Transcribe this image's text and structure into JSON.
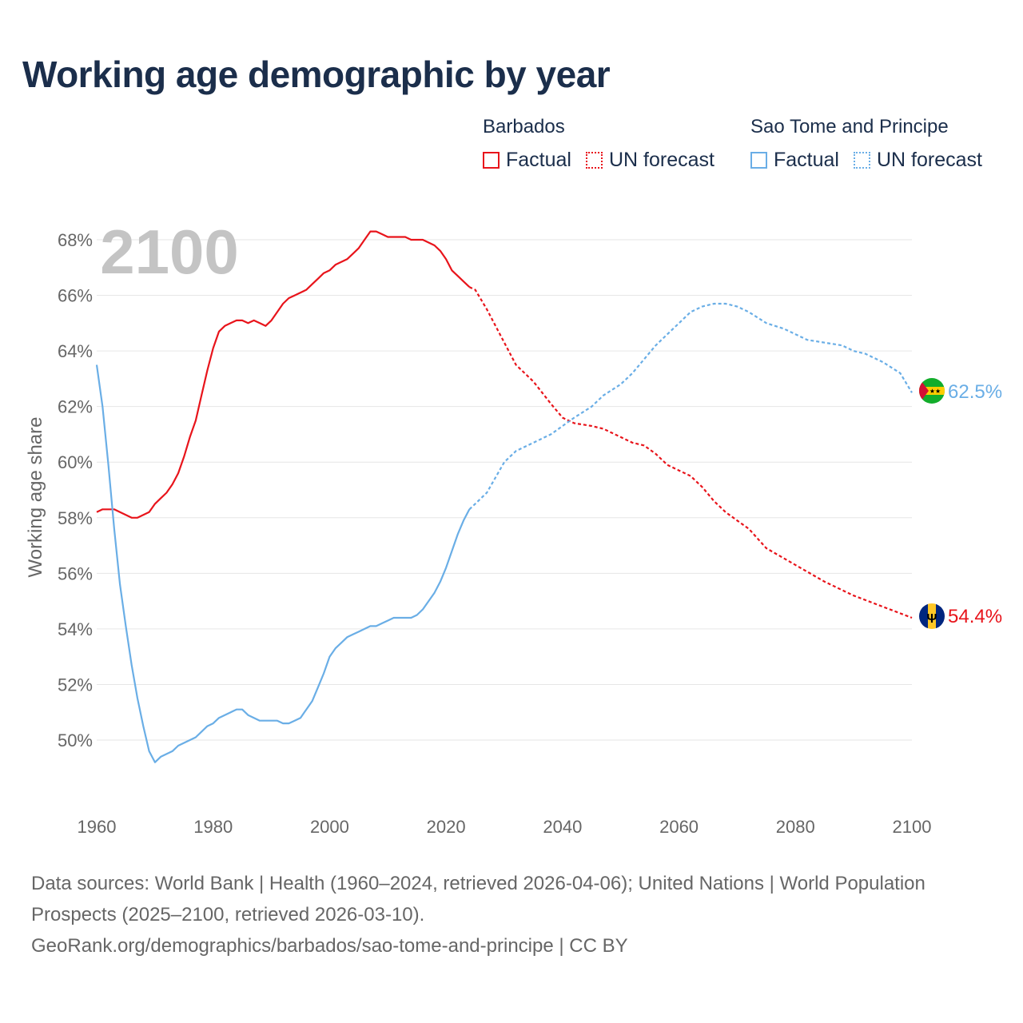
{
  "title": "Working age demographic by year",
  "year_watermark": "2100",
  "legend": {
    "groups": [
      {
        "name": "Barbados",
        "color": "#e8141b",
        "factual_label": "Factual",
        "forecast_label": "UN forecast"
      },
      {
        "name": "Sao Tome and Principe",
        "color": "#6aaee6",
        "factual_label": "Factual",
        "forecast_label": "UN forecast"
      }
    ]
  },
  "footer": {
    "sources": "Data sources: World Bank | Health (1960–2024, retrieved 2026-04-06); United Nations | World Population Prospects (2025–2100, retrieved 2026-03-10).",
    "link": "GeoRank.org/demographics/barbados/sao-tome-and-principe | CC BY"
  },
  "chart_data": {
    "type": "line",
    "title": "Working age demographic by year",
    "xlabel": "",
    "ylabel": "Working age share",
    "xlim": [
      1960,
      2100
    ],
    "ylim": [
      47.5,
      68.5
    ],
    "xticks": [
      1960,
      1980,
      2000,
      2020,
      2040,
      2060,
      2080,
      2100
    ],
    "xtick_labels": [
      "1960",
      "1980",
      "2000",
      "2020",
      "2040",
      "2060",
      "2080",
      "2100"
    ],
    "yticks": [
      50,
      52,
      54,
      56,
      58,
      60,
      62,
      64,
      66,
      68
    ],
    "ytick_labels": [
      "50%",
      "52%",
      "54%",
      "56%",
      "58%",
      "60%",
      "62%",
      "64%",
      "66%",
      "68%"
    ],
    "grid": true,
    "forecast_start": 2024,
    "series": [
      {
        "name": "Barbados",
        "color": "#e8141b",
        "end_label": "54.4%",
        "x": [
          1960,
          1961,
          1962,
          1963,
          1964,
          1965,
          1966,
          1967,
          1968,
          1969,
          1970,
          1971,
          1972,
          1973,
          1974,
          1975,
          1976,
          1977,
          1978,
          1979,
          1980,
          1981,
          1982,
          1983,
          1984,
          1985,
          1986,
          1987,
          1988,
          1989,
          1990,
          1991,
          1992,
          1993,
          1994,
          1995,
          1996,
          1997,
          1998,
          1999,
          2000,
          2001,
          2002,
          2003,
          2004,
          2005,
          2006,
          2007,
          2008,
          2009,
          2010,
          2011,
          2012,
          2013,
          2014,
          2015,
          2016,
          2017,
          2018,
          2019,
          2020,
          2021,
          2022,
          2023,
          2024,
          2025,
          2027,
          2030,
          2032,
          2035,
          2038,
          2040,
          2042,
          2045,
          2047,
          2050,
          2052,
          2054,
          2056,
          2058,
          2060,
          2062,
          2064,
          2066,
          2068,
          2070,
          2072,
          2075,
          2080,
          2085,
          2090,
          2095,
          2100
        ],
        "values": [
          58.2,
          58.3,
          58.3,
          58.3,
          58.2,
          58.1,
          58.0,
          58.0,
          58.1,
          58.2,
          58.5,
          58.7,
          58.9,
          59.2,
          59.6,
          60.2,
          60.9,
          61.5,
          62.4,
          63.3,
          64.1,
          64.7,
          64.9,
          65.0,
          65.1,
          65.1,
          65.0,
          65.1,
          65.0,
          64.9,
          65.1,
          65.4,
          65.7,
          65.9,
          66.0,
          66.1,
          66.2,
          66.4,
          66.6,
          66.8,
          66.9,
          67.1,
          67.2,
          67.3,
          67.5,
          67.7,
          68.0,
          68.3,
          68.3,
          68.2,
          68.1,
          68.1,
          68.1,
          68.1,
          68.0,
          68.0,
          68.0,
          67.9,
          67.8,
          67.6,
          67.3,
          66.9,
          66.7,
          66.5,
          66.3,
          66.2,
          65.5,
          64.3,
          63.5,
          62.9,
          62.1,
          61.6,
          61.4,
          61.3,
          61.2,
          60.9,
          60.7,
          60.6,
          60.3,
          59.9,
          59.7,
          59.5,
          59.1,
          58.6,
          58.2,
          57.9,
          57.6,
          56.9,
          56.3,
          55.7,
          55.2,
          54.8,
          54.4
        ]
      },
      {
        "name": "Sao Tome and Principe",
        "color": "#6aaee6",
        "end_label": "62.5%",
        "x": [
          1960,
          1961,
          1962,
          1963,
          1964,
          1965,
          1966,
          1967,
          1968,
          1969,
          1970,
          1971,
          1972,
          1973,
          1974,
          1975,
          1976,
          1977,
          1978,
          1979,
          1980,
          1981,
          1982,
          1983,
          1984,
          1985,
          1986,
          1987,
          1988,
          1989,
          1990,
          1991,
          1992,
          1993,
          1994,
          1995,
          1996,
          1997,
          1998,
          1999,
          2000,
          2001,
          2002,
          2003,
          2004,
          2005,
          2006,
          2007,
          2008,
          2009,
          2010,
          2011,
          2012,
          2013,
          2014,
          2015,
          2016,
          2017,
          2018,
          2019,
          2020,
          2021,
          2022,
          2023,
          2024,
          2025,
          2027,
          2030,
          2032,
          2035,
          2038,
          2040,
          2042,
          2045,
          2047,
          2050,
          2052,
          2054,
          2056,
          2058,
          2060,
          2062,
          2064,
          2066,
          2068,
          2070,
          2072,
          2075,
          2078,
          2080,
          2082,
          2085,
          2088,
          2090,
          2092,
          2095,
          2098,
          2100
        ],
        "values": [
          63.5,
          62.0,
          59.9,
          57.6,
          55.6,
          54.1,
          52.7,
          51.5,
          50.5,
          49.6,
          49.2,
          49.4,
          49.5,
          49.6,
          49.8,
          49.9,
          50.0,
          50.1,
          50.3,
          50.5,
          50.6,
          50.8,
          50.9,
          51.0,
          51.1,
          51.1,
          50.9,
          50.8,
          50.7,
          50.7,
          50.7,
          50.7,
          50.6,
          50.6,
          50.7,
          50.8,
          51.1,
          51.4,
          51.9,
          52.4,
          53.0,
          53.3,
          53.5,
          53.7,
          53.8,
          53.9,
          54.0,
          54.1,
          54.1,
          54.2,
          54.3,
          54.4,
          54.4,
          54.4,
          54.4,
          54.5,
          54.7,
          55.0,
          55.3,
          55.7,
          56.2,
          56.8,
          57.4,
          57.9,
          58.3,
          58.5,
          58.9,
          60.0,
          60.4,
          60.7,
          61.0,
          61.3,
          61.6,
          62.0,
          62.4,
          62.8,
          63.2,
          63.7,
          64.2,
          64.6,
          65.0,
          65.4,
          65.6,
          65.7,
          65.7,
          65.6,
          65.4,
          65.0,
          64.8,
          64.6,
          64.4,
          64.3,
          64.2,
          64.0,
          63.9,
          63.6,
          63.2,
          62.5
        ]
      }
    ]
  }
}
